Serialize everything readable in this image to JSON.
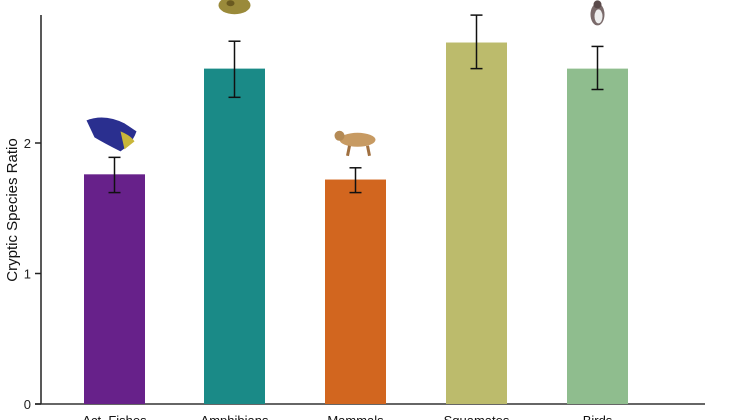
{
  "chart_data": {
    "type": "bar",
    "title": "",
    "xlabel": "",
    "ylabel": "Cryptic Species Ratio",
    "ylim": [
      0,
      2.98
    ],
    "yticks": [
      0,
      1,
      2
    ],
    "grid": false,
    "categories": [
      "Act. Fishes",
      "Amphibians",
      "Mammals",
      "Squamates",
      "Birds"
    ],
    "values": [
      1.76,
      2.57,
      1.72,
      2.77,
      2.57
    ],
    "error_low": [
      1.62,
      2.35,
      1.62,
      2.57,
      2.41
    ],
    "error_high": [
      1.89,
      2.78,
      1.81,
      2.98,
      2.74
    ],
    "colors": [
      "#67218a",
      "#1a8a87",
      "#d2661f",
      "#bcbb6c",
      "#8fbd8e"
    ],
    "icons": [
      "fish-icon",
      "frog-icon",
      "lynx-icon",
      "lizard-icon",
      "bird-icon"
    ]
  }
}
